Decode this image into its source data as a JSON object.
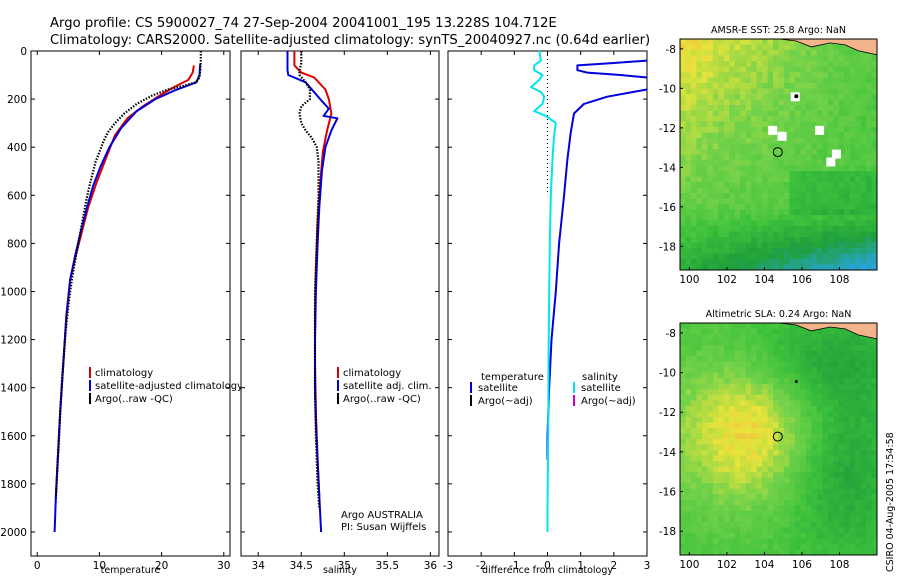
{
  "header": {
    "line1": "Argo profile: CS 5900027_74 27-Sep-2004 20041001_195 13.228S 104.712E",
    "line2": "Climatology: CARS2000. Satellite-adjusted climatology: synTS_20040927.nc (0.64d earlier)"
  },
  "side_label": "CSIRO 04-Aug-2005 17:54:58",
  "colors": {
    "climatology": "#dd0000",
    "satellite": "#0000dd",
    "argo": "#000000",
    "salinity_satellite": "#00e5ee",
    "salinity_argo": "#cc00cc",
    "ocean_dark": "#1fa03a",
    "ocean_mid": "#3cc13c",
    "ocean_light": "#74d24a",
    "ocean_yellow": "#e9e43b",
    "ocean_orange": "#f4a640",
    "ocean_blue": "#2aa5e8",
    "land": "#f3b48c"
  },
  "chart_data": [
    {
      "type": "line",
      "id": "temperature",
      "xlabel": "temperature",
      "xlim": [
        -1,
        31
      ],
      "ylim": [
        0,
        2100
      ],
      "y_reversed": true,
      "xticks": [
        0,
        10,
        20,
        30
      ],
      "yticks": [
        0,
        200,
        400,
        600,
        800,
        1000,
        1200,
        1400,
        1600,
        1800,
        2000
      ],
      "series": [
        {
          "name": "climatology",
          "color": "#dd0000",
          "points": [
            [
              25.2,
              60
            ],
            [
              25.0,
              90
            ],
            [
              24.3,
              120
            ],
            [
              22,
              150
            ],
            [
              20,
              180
            ],
            [
              17,
              230
            ],
            [
              14.5,
              280
            ],
            [
              12.5,
              350
            ],
            [
              11,
              450
            ],
            [
              9.5,
              550
            ],
            [
              8.2,
              650
            ],
            [
              7.2,
              750
            ],
            [
              6.2,
              850
            ],
            [
              5.3,
              950
            ],
            [
              4.7,
              1100
            ],
            [
              4.2,
              1300
            ],
            [
              3.7,
              1500
            ],
            [
              3.3,
              1700
            ],
            [
              3.0,
              1850
            ]
          ]
        },
        {
          "name": "satellite-adjusted climatology",
          "color": "#0000dd",
          "points": [
            [
              26.2,
              55
            ],
            [
              26.1,
              100
            ],
            [
              25.6,
              130
            ],
            [
              22,
              165
            ],
            [
              19,
              200
            ],
            [
              16,
              250
            ],
            [
              13.5,
              320
            ],
            [
              11.6,
              400
            ],
            [
              10.2,
              480
            ],
            [
              9,
              560
            ],
            [
              8.0,
              650
            ],
            [
              7.0,
              750
            ],
            [
              6.1,
              850
            ],
            [
              5.3,
              950
            ],
            [
              4.7,
              1100
            ],
            [
              4.2,
              1300
            ],
            [
              3.7,
              1500
            ],
            [
              3.3,
              1700
            ],
            [
              3.0,
              1850
            ],
            [
              2.8,
              2000
            ]
          ]
        },
        {
          "name": "Argo(..raw -QC)",
          "color": "#000000",
          "dotted": true,
          "points": [
            [
              26.3,
              0
            ],
            [
              26.3,
              40
            ],
            [
              26.2,
              80
            ],
            [
              26.1,
              110
            ],
            [
              25.5,
              130
            ],
            [
              23.5,
              145
            ],
            [
              21,
              160
            ],
            [
              18.5,
              185
            ],
            [
              16,
              220
            ],
            [
              14,
              260
            ],
            [
              12.5,
              300
            ],
            [
              11.3,
              340
            ],
            [
              10.6,
              380
            ],
            [
              10.0,
              420
            ],
            [
              9.4,
              460
            ],
            [
              9.0,
              500
            ],
            [
              8.4,
              560
            ],
            [
              7.9,
              620
            ],
            [
              7.4,
              690
            ],
            [
              6.9,
              760
            ],
            [
              6.4,
              830
            ],
            [
              5.9,
              900
            ],
            [
              5.4,
              980
            ],
            [
              5.0,
              1060
            ],
            [
              4.6,
              1160
            ],
            [
              4.3,
              1260
            ],
            [
              4.0,
              1360
            ],
            [
              3.8,
              1460
            ],
            [
              3.6,
              1560
            ],
            [
              3.4,
              1660
            ],
            [
              3.2,
              1760
            ],
            [
              3.0,
              1860
            ]
          ]
        }
      ],
      "legend": [
        {
          "label": "climatology",
          "color": "#dd0000"
        },
        {
          "label": "satellite-adjusted climatology",
          "color": "#0000dd"
        },
        {
          "label": "Argo(..raw -QC)",
          "color": "#000000"
        }
      ]
    },
    {
      "type": "line",
      "id": "salinity",
      "xlabel": "salinity",
      "xlim": [
        33.8,
        36.1
      ],
      "ylim": [
        0,
        2100
      ],
      "y_reversed": true,
      "xticks": [
        34,
        34.5,
        35,
        35.5,
        36
      ],
      "series": [
        {
          "name": "climatology",
          "color": "#dd0000",
          "points": [
            [
              34.42,
              0
            ],
            [
              34.42,
              60
            ],
            [
              34.5,
              90
            ],
            [
              34.65,
              110
            ],
            [
              34.78,
              160
            ],
            [
              34.82,
              200
            ],
            [
              34.85,
              260
            ],
            [
              34.8,
              330
            ],
            [
              34.75,
              420
            ],
            [
              34.72,
              550
            ],
            [
              34.69,
              700
            ],
            [
              34.67,
              900
            ],
            [
              34.66,
              1100
            ],
            [
              34.66,
              1300
            ],
            [
              34.67,
              1500
            ],
            [
              34.69,
              1700
            ],
            [
              34.71,
              1850
            ]
          ]
        },
        {
          "name": "satellite adj. clim.",
          "color": "#0000dd",
          "points": [
            [
              34.34,
              0
            ],
            [
              34.34,
              80
            ],
            [
              34.35,
              100
            ],
            [
              34.55,
              130
            ],
            [
              34.72,
              200
            ],
            [
              34.82,
              240
            ],
            [
              34.76,
              270
            ],
            [
              34.92,
              280
            ],
            [
              34.85,
              330
            ],
            [
              34.78,
              400
            ],
            [
              34.74,
              500
            ],
            [
              34.71,
              650
            ],
            [
              34.69,
              800
            ],
            [
              34.67,
              1000
            ],
            [
              34.66,
              1200
            ],
            [
              34.66,
              1400
            ],
            [
              34.67,
              1550
            ],
            [
              34.69,
              1700
            ],
            [
              34.71,
              1850
            ],
            [
              34.73,
              2000
            ]
          ]
        },
        {
          "name": "Argo(..raw -QC)",
          "color": "#000000",
          "dotted": true,
          "points": [
            [
              34.5,
              0
            ],
            [
              34.5,
              50
            ],
            [
              34.48,
              80
            ],
            [
              34.48,
              100
            ],
            [
              34.55,
              130
            ],
            [
              34.6,
              160
            ],
            [
              34.6,
              200
            ],
            [
              34.5,
              230
            ],
            [
              34.48,
              260
            ],
            [
              34.5,
              300
            ],
            [
              34.55,
              330
            ],
            [
              34.62,
              360
            ],
            [
              34.68,
              400
            ],
            [
              34.7,
              460
            ],
            [
              34.7,
              600
            ],
            [
              34.68,
              800
            ],
            [
              34.66,
              1000
            ],
            [
              34.66,
              1200
            ],
            [
              34.66,
              1400
            ],
            [
              34.67,
              1600
            ],
            [
              34.69,
              1800
            ],
            [
              34.71,
              1900
            ]
          ]
        }
      ],
      "legend": [
        {
          "label": "climatology",
          "color": "#dd0000"
        },
        {
          "label": "satellite adj. clim.",
          "color": "#0000dd"
        },
        {
          "label": "Argo(..raw -QC)",
          "color": "#000000"
        }
      ],
      "annotations": [
        "Argo AUSTRALIA",
        "PI: Susan Wijffels"
      ]
    },
    {
      "type": "line",
      "id": "difference",
      "xlabel": "difference from climatology",
      "xlim": [
        -3,
        3
      ],
      "ylim": [
        0,
        2100
      ],
      "y_reversed": true,
      "xticks": [
        -3,
        -2,
        -1,
        0,
        1,
        2,
        3
      ],
      "series": [
        {
          "name": "temperature satellite",
          "color": "#0000dd",
          "points": [
            [
              3.0,
              110
            ],
            [
              2.2,
              100
            ],
            [
              1.2,
              90
            ],
            [
              0.9,
              80
            ],
            [
              0.9,
              60
            ],
            [
              2.0,
              50
            ],
            [
              3.0,
              40
            ]
          ]
        },
        {
          "name": "temperature satellite lower",
          "color": "#0000dd",
          "points": [
            [
              3.0,
              160
            ],
            [
              2.6,
              170
            ],
            [
              1.8,
              190
            ],
            [
              1.1,
              220
            ],
            [
              0.8,
              260
            ],
            [
              0.7,
              340
            ],
            [
              0.6,
              450
            ],
            [
              0.5,
              600
            ],
            [
              0.35,
              800
            ],
            [
              0.25,
              1000
            ],
            [
              0.12,
              1200
            ],
            [
              0.05,
              1400
            ],
            [
              0.0,
              1600
            ],
            [
              0.0,
              1700
            ]
          ]
        },
        {
          "name": "salinity satellite",
          "color": "#00e5ee",
          "points": [
            [
              -0.25,
              0
            ],
            [
              -0.2,
              40
            ],
            [
              -0.4,
              60
            ],
            [
              -0.4,
              80
            ],
            [
              -0.15,
              100
            ],
            [
              -0.25,
              120
            ],
            [
              -0.5,
              150
            ],
            [
              -0.2,
              170
            ],
            [
              -0.1,
              190
            ],
            [
              -0.15,
              220
            ],
            [
              -0.4,
              250
            ],
            [
              -0.05,
              270
            ],
            [
              0.25,
              300
            ],
            [
              0.2,
              350
            ],
            [
              0.15,
              450
            ],
            [
              0.1,
              600
            ],
            [
              0.07,
              800
            ],
            [
              0.05,
              1000
            ],
            [
              0.03,
              1300
            ],
            [
              0.02,
              1600
            ],
            [
              0.0,
              1900
            ],
            [
              0.0,
              2000
            ]
          ]
        }
      ],
      "legend_left_heading": "temperature",
      "legend_right_heading": "salinity",
      "legend_left": [
        {
          "label": "satellite",
          "color": "#0000dd"
        },
        {
          "label": "Argo(~adj)",
          "color": "#000000"
        }
      ],
      "legend_right": [
        {
          "label": "satellite",
          "color": "#00e5ee"
        },
        {
          "label": "Argo(~adj)",
          "color": "#cc00cc"
        }
      ]
    },
    {
      "type": "heatmap",
      "id": "sst-map",
      "title": "AMSR-E SST: 25.8 Argo: NaN",
      "xlim": [
        99.5,
        110
      ],
      "ylim": [
        -19.2,
        -7.5
      ],
      "xticks": [
        100,
        102,
        104,
        106,
        108
      ],
      "yticks": [
        -8,
        -10,
        -12,
        -14,
        -16,
        -18
      ],
      "argo_position": [
        104.712,
        -13.228
      ]
    },
    {
      "type": "heatmap",
      "id": "sla-map",
      "title": "Altimetric SLA: 0.24 Argo: NaN",
      "xlim": [
        99.5,
        110
      ],
      "ylim": [
        -19.2,
        -7.5
      ],
      "xticks": [
        100,
        102,
        104,
        106,
        108
      ],
      "yticks": [
        -8,
        -10,
        -12,
        -14,
        -16,
        -18
      ],
      "argo_position": [
        104.712,
        -13.228
      ]
    }
  ]
}
